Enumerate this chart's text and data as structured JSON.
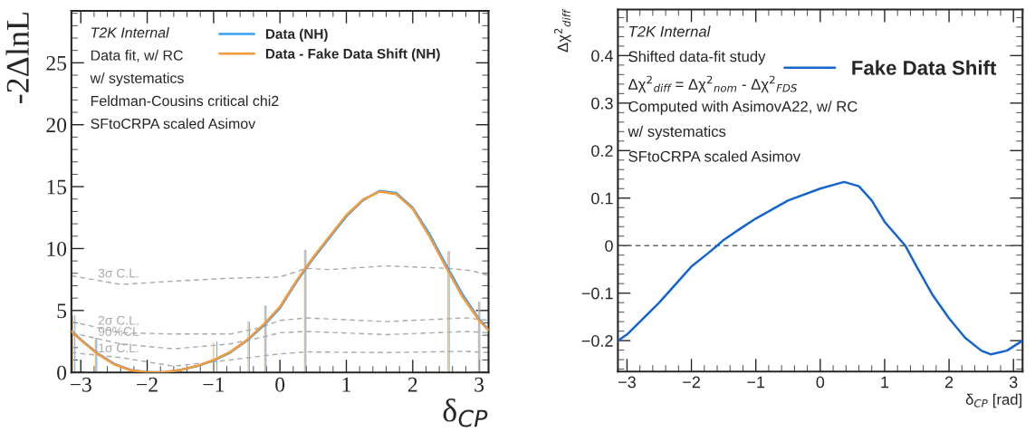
{
  "chart_data": [
    {
      "type": "line",
      "ylabel": "-2ΔlnL",
      "xlabel": "δ$_{CP}$",
      "legend": "top",
      "xlim": [
        -3.1416,
        3.1416
      ],
      "ylim": [
        0,
        29.2
      ],
      "xticks": [
        {
          "value": -3,
          "label": "−3"
        },
        {
          "value": -2,
          "label": "−2"
        },
        {
          "value": -1,
          "label": "−1"
        },
        0,
        1,
        2,
        3
      ],
      "yticks": [
        0,
        5,
        10,
        15,
        20,
        25
      ],
      "annotations": [
        "T2K Internal",
        "Data fit, w/ RC",
        "w/ systematics",
        "Feldman-Cousins critical chi2",
        "SFtoCRPA scaled Asimov"
      ],
      "series": [
        {
          "type": "bar",
          "color": "#6fb4f2",
          "x": [
            -3.09,
            -2.76,
            -0.95,
            -0.46,
            -0.21,
            0.39,
            2.55,
            3.01
          ],
          "values": [
            4.6,
            2.8,
            2.5,
            4.1,
            5.4,
            9.9,
            9.8,
            5.7
          ]
        },
        {
          "type": "bar",
          "color": "#f5ad66",
          "x": [
            -3.12,
            -2.78,
            -1.0,
            -0.48,
            -0.23,
            0.37,
            2.53,
            2.99
          ],
          "values": [
            4.6,
            2.8,
            2.4,
            4.1,
            5.4,
            9.9,
            9.8,
            5.7
          ]
        },
        {
          "name": "3σ C.L.",
          "color": "#aaaaaa",
          "line_style": "dashed",
          "x": [
            -3.14,
            -2.4,
            -1.5,
            -0.75,
            0,
            0.4,
            0.75,
            1.6,
            2.55,
            2.9,
            3.14
          ],
          "values": [
            7.8,
            7.1,
            7.4,
            7.6,
            7.7,
            8.4,
            8.3,
            8.6,
            8.4,
            8.2,
            7.8
          ]
        },
        {
          "name": "2σ C.L.",
          "color": "#aaaaaa",
          "line_style": "dashed",
          "x": [
            -3.14,
            -2.4,
            -1.6,
            -0.75,
            -0.3,
            0,
            0.4,
            1.6,
            2.8,
            3.14
          ],
          "values": [
            4.1,
            3.2,
            3.1,
            3.1,
            3.6,
            4.2,
            4.4,
            4.1,
            4.4,
            4.2
          ]
        },
        {
          "name": "90%CL",
          "color": "#aaaaaa",
          "line_style": "dashed",
          "x": [
            -3.14,
            -2.4,
            -1.6,
            -0.75,
            -0.3,
            0,
            0.4,
            1.6,
            2.8,
            3.14
          ],
          "values": [
            3.2,
            2.3,
            1.9,
            2.3,
            2.8,
            3.2,
            3.3,
            3.05,
            3.3,
            3.2
          ]
        },
        {
          "name": "1σ C.L.",
          "color": "#aaaaaa",
          "line_style": "dashed",
          "x": [
            -3.14,
            -2.4,
            -1.6,
            -0.75,
            0,
            0.4,
            1.6,
            2.8,
            3.14
          ],
          "values": [
            1.6,
            1.2,
            0.5,
            1.0,
            1.5,
            1.65,
            1.6,
            1.7,
            1.6
          ]
        },
        {
          "name": "Data (NH)",
          "color": "#3a9ef5",
          "line_style": "solid",
          "x": [
            -3.14,
            -3.0,
            -2.75,
            -2.5,
            -2.25,
            -2.0,
            -1.75,
            -1.5,
            -1.25,
            -1.0,
            -0.75,
            -0.5,
            -0.25,
            0,
            0.25,
            0.5,
            0.75,
            1.0,
            1.25,
            1.5,
            1.75,
            2.0,
            2.25,
            2.5,
            2.75,
            3.0,
            3.14
          ],
          "values": [
            3.35,
            2.65,
            1.55,
            0.7,
            0.2,
            0.02,
            0.02,
            0.2,
            0.5,
            0.95,
            1.6,
            2.55,
            3.75,
            5.2,
            7.3,
            9.2,
            10.9,
            12.6,
            13.9,
            14.65,
            14.5,
            13.3,
            11.2,
            8.7,
            6.3,
            4.3,
            3.45
          ]
        },
        {
          "name": "Data - Fake Data Shift (NH)",
          "color": "#f59a3a",
          "line_style": "solid",
          "x": [
            -3.14,
            -3.0,
            -2.75,
            -2.5,
            -2.25,
            -2.0,
            -1.75,
            -1.5,
            -1.25,
            -1.0,
            -0.75,
            -0.5,
            -0.25,
            0,
            0.25,
            0.5,
            0.75,
            1.0,
            1.25,
            1.5,
            1.75,
            2.0,
            2.25,
            2.5,
            2.75,
            3.0,
            3.14
          ],
          "values": [
            3.3,
            2.6,
            1.5,
            0.65,
            0.18,
            0.02,
            0.02,
            0.2,
            0.52,
            1.0,
            1.65,
            2.6,
            3.85,
            5.3,
            7.4,
            9.3,
            11.0,
            12.7,
            13.95,
            14.6,
            14.4,
            13.2,
            11.0,
            8.5,
            6.1,
            4.2,
            3.4
          ]
        }
      ]
    },
    {
      "type": "line",
      "ylabel": "Δχ$^{2}$$_{diff}$",
      "xlabel": "δ$_{CP}$ [rad]",
      "legend": "top right",
      "xlim": [
        -3.1416,
        3.1416
      ],
      "ylim": [
        -0.265,
        0.497
      ],
      "xticks": [
        {
          "value": -3,
          "label": "−3"
        },
        {
          "value": -2,
          "label": "−2"
        },
        {
          "value": -1,
          "label": "−1"
        },
        0,
        1,
        2,
        3
      ],
      "yticks": [
        {
          "value": -0.2,
          "label": "−0.2"
        },
        {
          "value": -0.1,
          "label": "−0.1"
        },
        0,
        0.1,
        0.2,
        0.3,
        0.4
      ],
      "annotations": [
        "T2K Internal",
        "Shifted data-fit study",
        "Δχ$^{2}$$_{diff}$ = Δχ$^{2}$$_{nom}$ - Δχ$^{2}$$_{FDS}$",
        "Computed with AsimovA22, w/ RC",
        "w/ systematics",
        "SFtoCRPA scaled Asimov"
      ],
      "ref_lines": [
        {
          "axis": "y",
          "value": 0,
          "color": "#666666",
          "line_style": "dashed"
        }
      ],
      "series": [
        {
          "name": "Fake Data Shift",
          "color": "#1565d0",
          "line_style": "solid",
          "x": [
            -3.14,
            -3.0,
            -2.5,
            -2.0,
            -1.75,
            -1.6,
            -1.5,
            -1.25,
            -1.0,
            -0.5,
            0,
            0.37,
            0.6,
            0.8,
            1.0,
            1.32,
            1.5,
            1.75,
            2.0,
            2.25,
            2.5,
            2.65,
            2.9,
            3.14
          ],
          "values": [
            -0.2,
            -0.187,
            -0.12,
            -0.044,
            -0.017,
            0,
            0.012,
            0.035,
            0.057,
            0.095,
            0.12,
            0.134,
            0.125,
            0.095,
            0.05,
            0,
            -0.045,
            -0.105,
            -0.153,
            -0.194,
            -0.221,
            -0.229,
            -0.221,
            -0.2
          ]
        }
      ]
    }
  ]
}
